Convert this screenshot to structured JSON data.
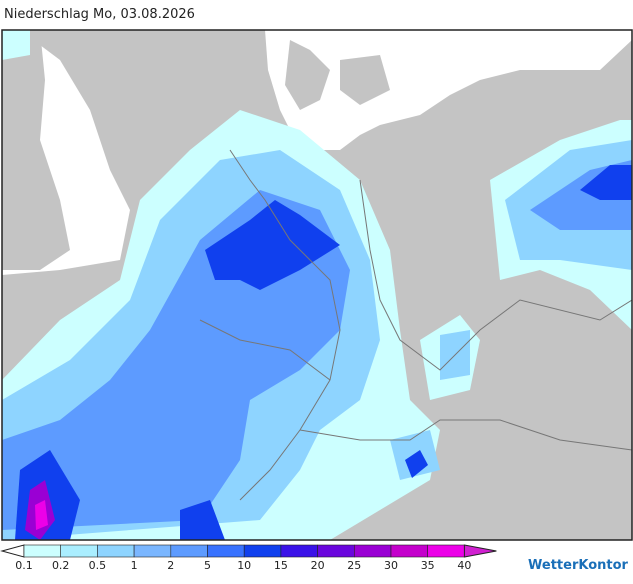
{
  "header": {
    "title": "Niederschlag Mo, 03.08.2026"
  },
  "legend": {
    "levels": [
      0.1,
      0.2,
      0.5,
      1,
      2,
      5,
      10,
      15,
      20,
      25,
      30,
      35,
      40
    ],
    "colors": [
      "#ccffff",
      "#aaeeff",
      "#8ed4ff",
      "#7ab6ff",
      "#5d9bff",
      "#3872ff",
      "#1040ee",
      "#3a12e8",
      "#6a06dd",
      "#9a00d4",
      "#c400cc",
      "#ec00e8"
    ]
  },
  "logo": "WetterKontor"
}
